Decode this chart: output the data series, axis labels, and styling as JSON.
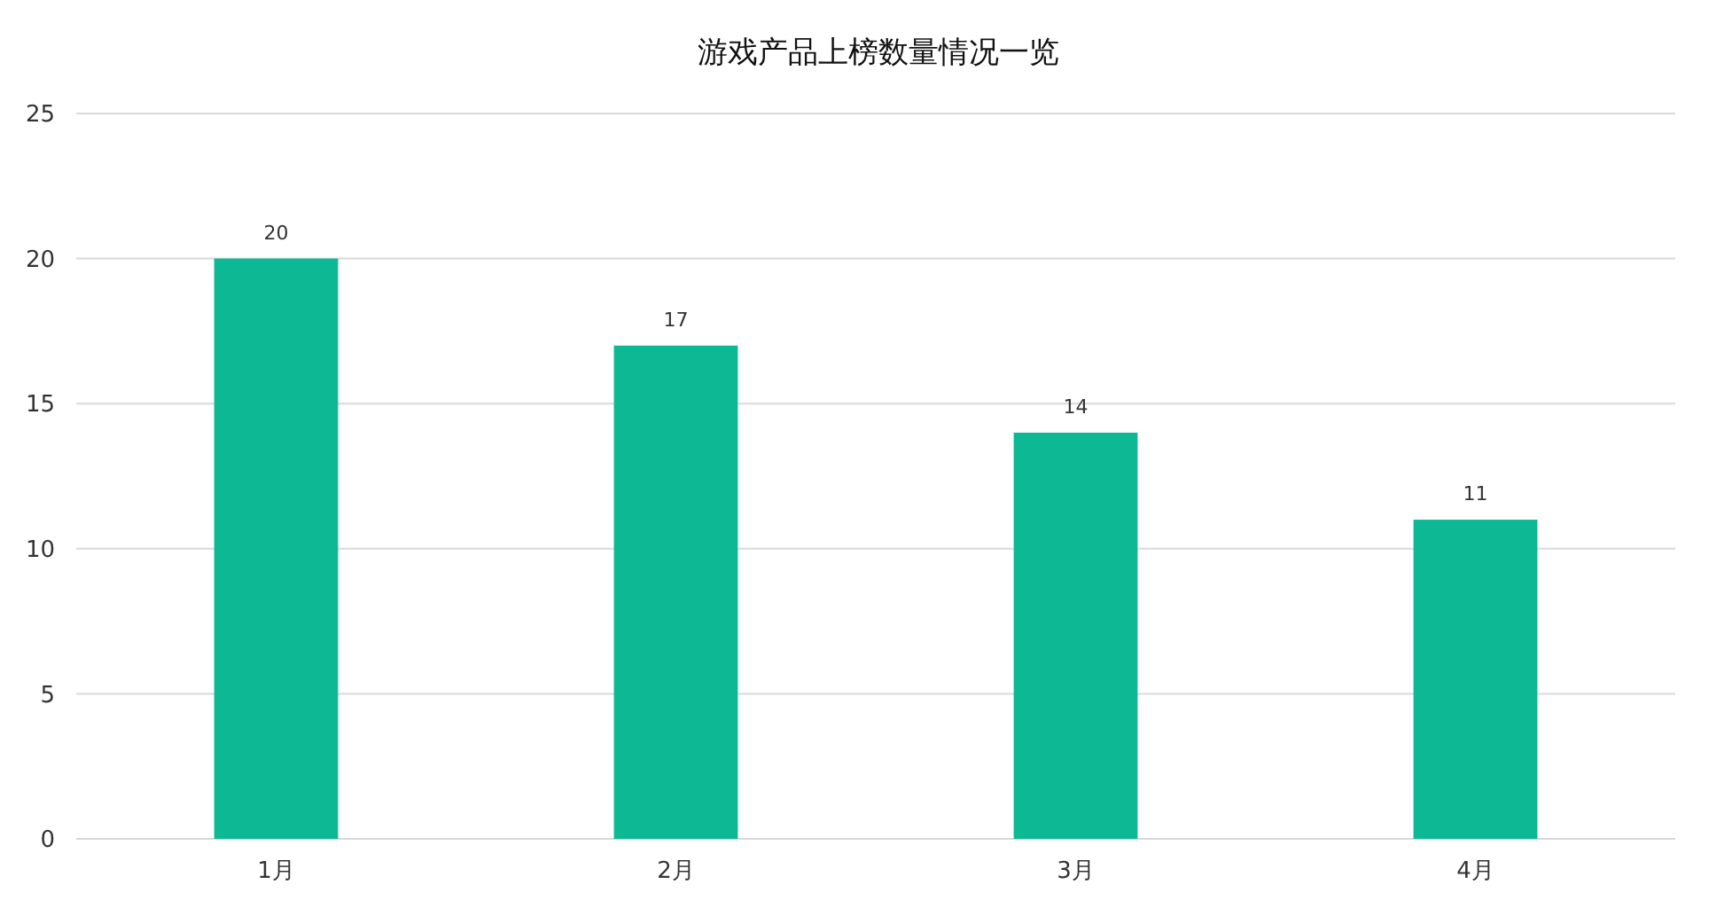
{
  "chart_data": {
    "type": "bar",
    "title": "游戏产品上榜数量情况一览",
    "categories": [
      "1月",
      "2月",
      "3月",
      "4月"
    ],
    "values": [
      20,
      17,
      14,
      11
    ],
    "color": "#0cb994",
    "ylim": [
      0,
      25
    ],
    "yticks": [
      0,
      5,
      10,
      15,
      20,
      25
    ],
    "grid": "y",
    "data_labels": true
  }
}
